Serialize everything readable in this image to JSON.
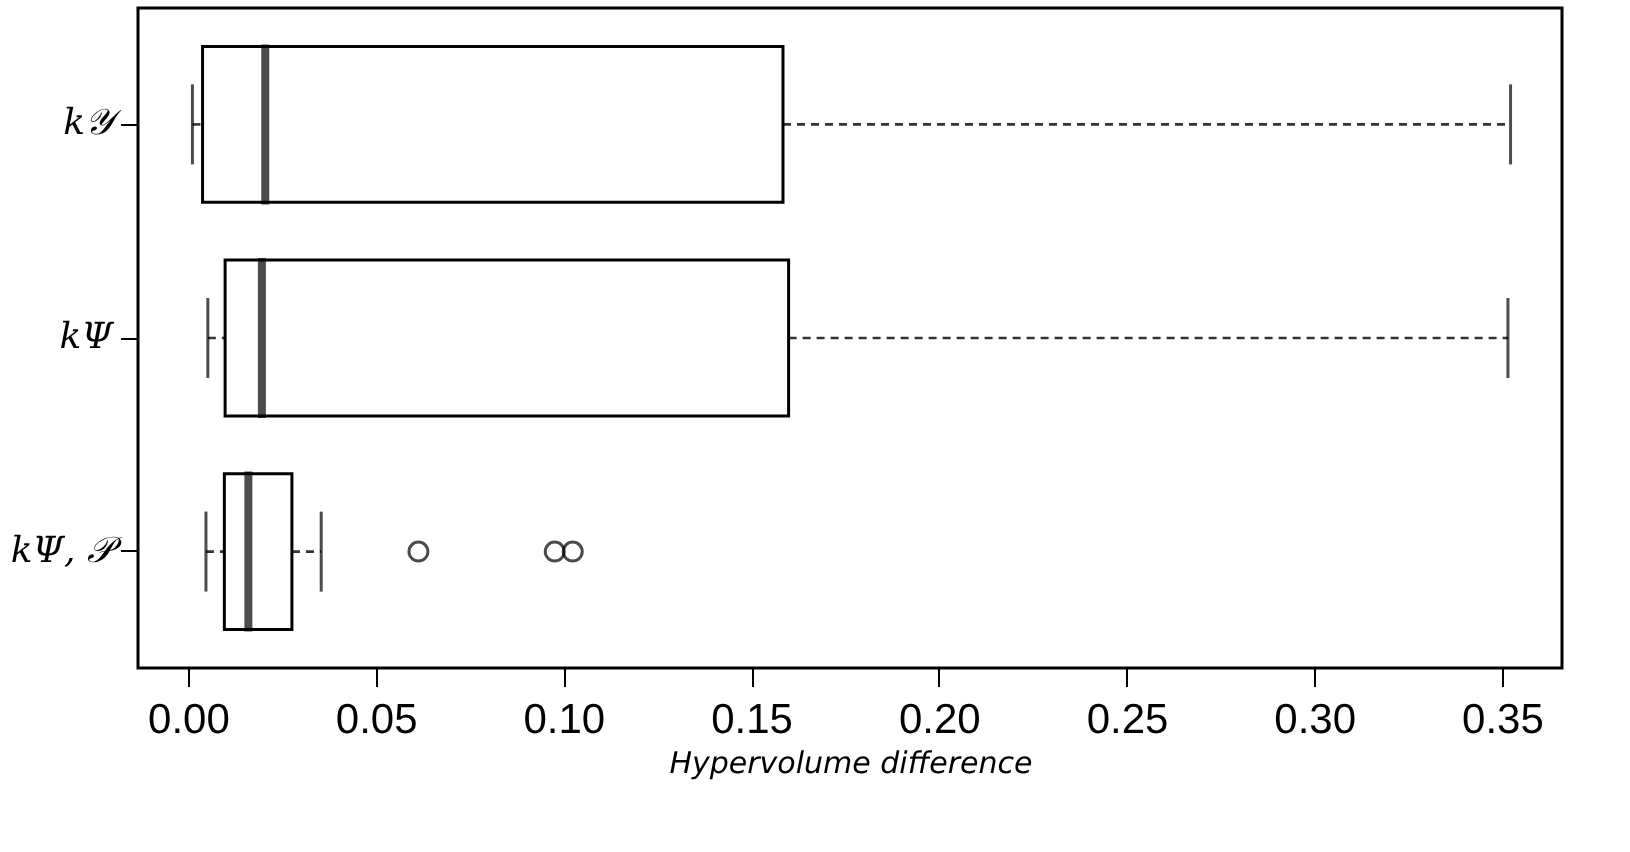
{
  "chart_data": {
    "type": "box",
    "orientation": "horizontal",
    "xlabel": "Hypervolume difference",
    "categories": [
      "k𝒴",
      "kΨ",
      "kΨ, 𝒫"
    ],
    "boxes": [
      {
        "low": 0.0012,
        "q1": 0.0039,
        "median": 0.0206,
        "q3": 0.1585,
        "high": 0.3523
      },
      {
        "low": 0.0053,
        "q1": 0.0099,
        "median": 0.0197,
        "q3": 0.16,
        "high": 0.3516
      },
      {
        "low": 0.0048,
        "q1": 0.0097,
        "median": 0.0161,
        "q3": 0.0277,
        "high": 0.0355,
        "outliers": [
          0.0614,
          0.0977,
          0.1025
        ]
      }
    ],
    "xlim": [
      -0.0133,
      0.366
    ],
    "xticks": [
      {
        "value": 0,
        "label": "0.00"
      },
      {
        "value": 0.05,
        "label": "0.05"
      },
      {
        "value": 0.1,
        "label": "0.10"
      },
      {
        "value": 0.15,
        "label": "0.15"
      },
      {
        "value": 0.2,
        "label": "0.20"
      },
      {
        "value": 0.25,
        "label": "0.25"
      },
      {
        "value": 0.3,
        "label": "0.30"
      },
      {
        "value": 0.35,
        "label": "0.35"
      }
    ],
    "line_style": "dashed"
  }
}
